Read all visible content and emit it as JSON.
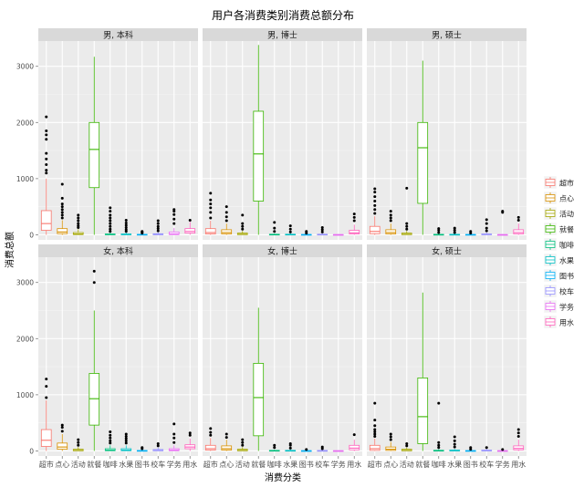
{
  "chart_data": {
    "type": "boxplot",
    "title": "用户各消费类别消费总额分布",
    "xlabel": "消费分类",
    "ylabel": "消费总额",
    "ylim": [
      -90,
      3450
    ],
    "yticks": [
      0,
      1000,
      2000,
      3000
    ],
    "grid": true,
    "legend_position": "right",
    "categories": [
      "超市",
      "点心",
      "活动",
      "就餐",
      "咖啡",
      "水果",
      "图书",
      "校车",
      "学务",
      "用水"
    ],
    "colors": [
      "#F8766D",
      "#D89000",
      "#A3A500",
      "#39B600",
      "#00BF7D",
      "#00BFC4",
      "#00B0F6",
      "#9590FF",
      "#E76BF3",
      "#FF62BC"
    ],
    "facets": [
      {
        "label": "男, 本科",
        "boxes": [
          {
            "min": 0,
            "q1": 80,
            "median": 200,
            "q3": 430,
            "max": 1000,
            "outliers": [
              1100,
              1150,
              1250,
              1350,
              1450,
              1700,
              1780,
              1850,
              2100
            ]
          },
          {
            "min": 0,
            "q1": 20,
            "median": 50,
            "q3": 110,
            "max": 260,
            "outliers": [
              300,
              350,
              400,
              450,
              500,
              550,
              650,
              900
            ]
          },
          {
            "min": 0,
            "q1": 5,
            "median": 15,
            "q3": 40,
            "max": 100,
            "outliers": [
              130,
              160,
              200,
              250,
              300,
              350
            ]
          },
          {
            "min": 0,
            "q1": 840,
            "median": 1520,
            "q3": 2000,
            "max": 3170,
            "outliers": []
          },
          {
            "min": 0,
            "q1": 2,
            "median": 5,
            "q3": 15,
            "max": 35,
            "outliers": [
              60,
              100,
              150,
              200,
              250,
              300,
              350,
              420,
              480
            ]
          },
          {
            "min": 0,
            "q1": 2,
            "median": 5,
            "q3": 15,
            "max": 40,
            "outliers": [
              60,
              90,
              130,
              170,
              210,
              260
            ]
          },
          {
            "min": 0,
            "q1": 1,
            "median": 3,
            "q3": 8,
            "max": 20,
            "outliers": [
              30,
              45,
              60
            ]
          },
          {
            "min": 0,
            "q1": 2,
            "median": 6,
            "q3": 18,
            "max": 45,
            "outliers": [
              70,
              110,
              150,
              200,
              250
            ]
          },
          {
            "min": 0,
            "q1": 5,
            "median": 15,
            "q3": 50,
            "max": 120,
            "outliers": [
              200,
              280,
              360,
              420,
              450
            ]
          },
          {
            "min": 0,
            "q1": 30,
            "median": 60,
            "q3": 110,
            "max": 230,
            "outliers": [
              260
            ]
          }
        ]
      },
      {
        "label": "男, 博士",
        "boxes": [
          {
            "min": 0,
            "q1": 15,
            "median": 40,
            "q3": 110,
            "max": 250,
            "outliers": [
              300,
              400,
              480,
              550,
              620,
              740
            ]
          },
          {
            "min": 0,
            "q1": 15,
            "median": 40,
            "q3": 90,
            "max": 200,
            "outliers": [
              250,
              320,
              400,
              500
            ]
          },
          {
            "min": 0,
            "q1": 3,
            "median": 10,
            "q3": 30,
            "max": 70,
            "outliers": [
              100,
              150,
              200,
              350
            ]
          },
          {
            "min": 0,
            "q1": 600,
            "median": 1440,
            "q3": 2200,
            "max": 3380,
            "outliers": []
          },
          {
            "min": 0,
            "q1": 1,
            "median": 3,
            "q3": 10,
            "max": 25,
            "outliers": [
              60,
              120,
              220
            ]
          },
          {
            "min": 0,
            "q1": 1,
            "median": 3,
            "q3": 10,
            "max": 25,
            "outliers": [
              50,
              100,
              160
            ]
          },
          {
            "min": 0,
            "q1": 1,
            "median": 2,
            "q3": 6,
            "max": 15,
            "outliers": [
              30,
              60
            ]
          },
          {
            "min": 0,
            "q1": 1,
            "median": 3,
            "q3": 10,
            "max": 25,
            "outliers": [
              50,
              90,
              130
            ]
          },
          {
            "min": 0,
            "q1": 1,
            "median": 2,
            "q3": 4,
            "max": 8,
            "outliers": []
          },
          {
            "min": 0,
            "q1": 15,
            "median": 35,
            "q3": 80,
            "max": 180,
            "outliers": [
              250,
              310,
              370
            ]
          }
        ]
      },
      {
        "label": "男, 硕士",
        "boxes": [
          {
            "min": 0,
            "q1": 20,
            "median": 60,
            "q3": 150,
            "max": 330,
            "outliers": [
              380,
              450,
              520,
              600,
              680,
              760,
              820
            ]
          },
          {
            "min": 0,
            "q1": 15,
            "median": 40,
            "q3": 90,
            "max": 200,
            "outliers": [
              250,
              300,
              350,
              420
            ]
          },
          {
            "min": 0,
            "q1": 3,
            "median": 10,
            "q3": 30,
            "max": 70,
            "outliers": [
              100,
              150,
              200,
              830
            ]
          },
          {
            "min": 0,
            "q1": 560,
            "median": 1550,
            "q3": 2000,
            "max": 3100,
            "outliers": []
          },
          {
            "min": 0,
            "q1": 1,
            "median": 3,
            "q3": 8,
            "max": 20,
            "outliers": [
              40,
              80,
              110
            ]
          },
          {
            "min": 0,
            "q1": 1,
            "median": 3,
            "q3": 8,
            "max": 20,
            "outliers": [
              40,
              80,
              120
            ]
          },
          {
            "min": 0,
            "q1": 1,
            "median": 2,
            "q3": 6,
            "max": 15,
            "outliers": [
              30,
              60
            ]
          },
          {
            "min": 0,
            "q1": 2,
            "median": 5,
            "q3": 15,
            "max": 40,
            "outliers": [
              70,
              120,
              200,
              270
            ]
          },
          {
            "min": 0,
            "q1": 1,
            "median": 2,
            "q3": 4,
            "max": 10,
            "outliers": [
              400,
              420
            ]
          },
          {
            "min": 0,
            "q1": 15,
            "median": 40,
            "q3": 90,
            "max": 200,
            "outliers": [
              260,
              310
            ]
          }
        ]
      },
      {
        "label": "女, 本科",
        "boxes": [
          {
            "min": 0,
            "q1": 80,
            "median": 190,
            "q3": 380,
            "max": 900,
            "outliers": [
              950,
              1150,
              1280
            ]
          },
          {
            "min": 0,
            "q1": 30,
            "median": 70,
            "q3": 140,
            "max": 300,
            "outliers": [
              350,
              420,
              460
            ]
          },
          {
            "min": 0,
            "q1": 3,
            "median": 10,
            "q3": 30,
            "max": 70,
            "outliers": [
              100,
              150,
              200
            ]
          },
          {
            "min": 0,
            "q1": 460,
            "median": 930,
            "q3": 1380,
            "max": 2500,
            "outliers": [
              3000,
              3200
            ]
          },
          {
            "min": 0,
            "q1": 5,
            "median": 15,
            "q3": 40,
            "max": 100,
            "outliers": [
              140,
              180,
              230,
              280,
              340
            ]
          },
          {
            "min": 0,
            "q1": 5,
            "median": 15,
            "q3": 40,
            "max": 100,
            "outliers": [
              140,
              180,
              220,
              260,
              300
            ]
          },
          {
            "min": 0,
            "q1": 1,
            "median": 3,
            "q3": 8,
            "max": 20,
            "outliers": [
              40,
              60
            ]
          },
          {
            "min": 0,
            "q1": 3,
            "median": 10,
            "q3": 25,
            "max": 60,
            "outliers": [
              90,
              130
            ]
          },
          {
            "min": 0,
            "q1": 5,
            "median": 15,
            "q3": 40,
            "max": 100,
            "outliers": [
              150,
              230,
              300,
              480
            ]
          },
          {
            "min": 0,
            "q1": 40,
            "median": 70,
            "q3": 110,
            "max": 220,
            "outliers": [
              280,
              320
            ]
          }
        ]
      },
      {
        "label": "女, 博士",
        "boxes": [
          {
            "min": 0,
            "q1": 15,
            "median": 40,
            "q3": 100,
            "max": 230,
            "outliers": [
              280,
              330,
              400
            ]
          },
          {
            "min": 0,
            "q1": 15,
            "median": 40,
            "q3": 90,
            "max": 200,
            "outliers": [
              240,
              300
            ]
          },
          {
            "min": 0,
            "q1": 3,
            "median": 10,
            "q3": 30,
            "max": 70,
            "outliers": [
              100,
              150,
              200
            ]
          },
          {
            "min": 0,
            "q1": 270,
            "median": 950,
            "q3": 1560,
            "max": 2550,
            "outliers": []
          },
          {
            "min": 0,
            "q1": 1,
            "median": 3,
            "q3": 10,
            "max": 25,
            "outliers": [
              60,
              100
            ]
          },
          {
            "min": 0,
            "q1": 1,
            "median": 3,
            "q3": 10,
            "max": 25,
            "outliers": [
              50,
              100,
              130
            ]
          },
          {
            "min": 0,
            "q1": 1,
            "median": 2,
            "q3": 5,
            "max": 12,
            "outliers": [
              25
            ]
          },
          {
            "min": 0,
            "q1": 1,
            "median": 3,
            "q3": 8,
            "max": 20,
            "outliers": [
              40,
              70
            ]
          },
          {
            "min": 0,
            "q1": 1,
            "median": 2,
            "q3": 4,
            "max": 8,
            "outliers": []
          },
          {
            "min": 0,
            "q1": 20,
            "median": 50,
            "q3": 100,
            "max": 200,
            "outliers": [
              290
            ]
          }
        ]
      },
      {
        "label": "女, 硕士",
        "boxes": [
          {
            "min": 0,
            "q1": 10,
            "median": 40,
            "q3": 100,
            "max": 220,
            "outliers": [
              260,
              300,
              340,
              380,
              450,
              550,
              850
            ]
          },
          {
            "min": 0,
            "q1": 10,
            "median": 30,
            "q3": 70,
            "max": 160,
            "outliers": [
              200,
              250,
              300
            ]
          },
          {
            "min": 0,
            "q1": 3,
            "median": 10,
            "q3": 30,
            "max": 60,
            "outliers": [
              90,
              130
            ]
          },
          {
            "min": 0,
            "q1": 130,
            "median": 610,
            "q3": 1300,
            "max": 2820,
            "outliers": []
          },
          {
            "min": 0,
            "q1": 1,
            "median": 4,
            "q3": 12,
            "max": 30,
            "outliers": [
              60,
              100,
              150,
              850
            ]
          },
          {
            "min": 0,
            "q1": 2,
            "median": 5,
            "q3": 15,
            "max": 35,
            "outliers": [
              70,
              120,
              180,
              250
            ]
          },
          {
            "min": 0,
            "q1": 1,
            "median": 2,
            "q3": 6,
            "max": 15,
            "outliers": [
              30,
              60
            ]
          },
          {
            "min": 0,
            "q1": 2,
            "median": 5,
            "q3": 15,
            "max": 35,
            "outliers": [
              60
            ]
          },
          {
            "min": 0,
            "q1": 1,
            "median": 2,
            "q3": 5,
            "max": 10,
            "outliers": [
              25
            ]
          },
          {
            "min": 0,
            "q1": 20,
            "median": 45,
            "q3": 90,
            "max": 200,
            "outliers": [
              260,
              320,
              380
            ]
          }
        ]
      }
    ]
  }
}
